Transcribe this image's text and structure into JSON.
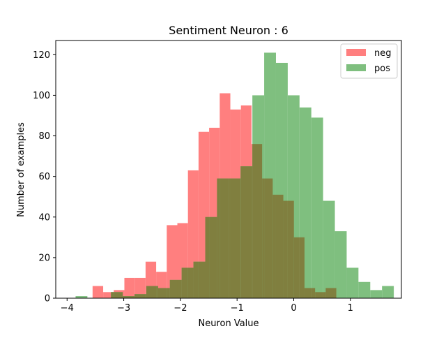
{
  "chart_data": {
    "type": "histogram",
    "title": "Sentiment Neuron : 6",
    "xlabel": "Neuron Value",
    "ylabel": "Number of examples",
    "xlim": [
      -4.2,
      1.9
    ],
    "ylim": [
      0,
      127
    ],
    "xticks": [
      -4,
      -3,
      -2,
      -1,
      0,
      1
    ],
    "xtick_labels": [
      "−4",
      "−3",
      "−2",
      "−1",
      "0",
      "1"
    ],
    "yticks": [
      0,
      20,
      40,
      60,
      80,
      100,
      120
    ],
    "ytick_labels": [
      "0",
      "20",
      "40",
      "60",
      "80",
      "100",
      "120"
    ],
    "grid": false,
    "legend_position": "top-right",
    "overlap_color": "#807f3f",
    "series": [
      {
        "name": "neg",
        "color": "#ff7f7f",
        "bin_edges": [
          -3.55,
          -3.363,
          -3.176,
          -2.989,
          -2.802,
          -2.615,
          -2.428,
          -2.241,
          -2.054,
          -1.867,
          -1.68,
          -1.493,
          -1.306,
          -1.119,
          -0.932,
          -0.745,
          -0.558,
          -0.371,
          -0.184,
          0.003,
          0.19,
          0.377,
          0.564,
          0.751,
          0.938,
          1.125
        ],
        "counts": [
          6,
          3,
          4,
          10,
          10,
          18,
          13,
          36,
          37,
          63,
          82,
          84,
          101,
          93,
          95,
          76,
          59,
          51,
          48,
          30,
          5,
          3,
          5,
          0,
          0
        ]
      },
      {
        "name": "pos",
        "color": "#7fbf7f",
        "bin_edges": [
          -3.85,
          -3.642,
          -3.434,
          -3.226,
          -3.018,
          -2.81,
          -2.602,
          -2.394,
          -2.186,
          -1.978,
          -1.77,
          -1.562,
          -1.354,
          -1.146,
          -0.938,
          -0.73,
          -0.522,
          -0.314,
          -0.106,
          0.102,
          0.31,
          0.518,
          0.726,
          0.934,
          1.142,
          1.35,
          1.558,
          1.766
        ],
        "counts": [
          1,
          0,
          0,
          3,
          1,
          2,
          6,
          5,
          9,
          15,
          18,
          40,
          59,
          59,
          65,
          100,
          121,
          116,
          100,
          94,
          89,
          48,
          33,
          15,
          8,
          4,
          6
        ]
      }
    ]
  }
}
